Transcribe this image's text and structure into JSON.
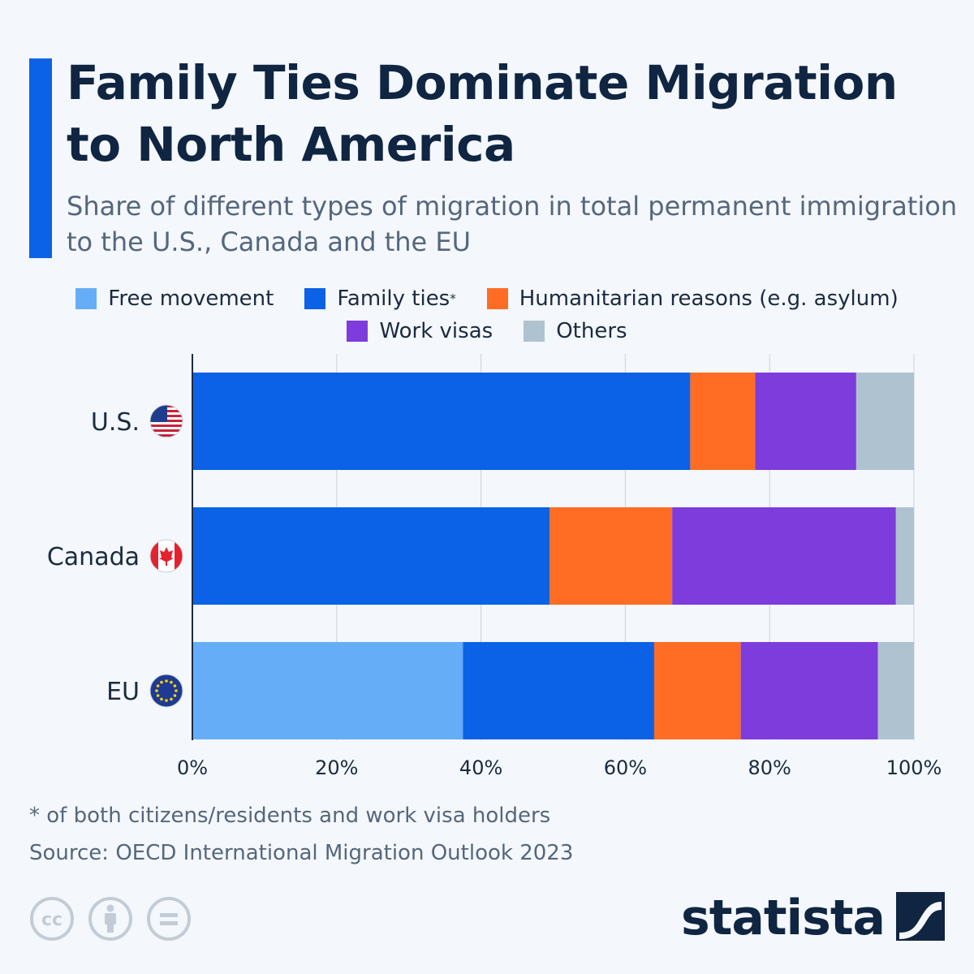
{
  "header": {
    "title": "Family Ties Dominate Migration to North America",
    "subtitle": "Share of different types of migration in total permanent immigration to the U.S., Canada and the EU"
  },
  "legend": {
    "items": [
      {
        "label": "Free movement",
        "color": "#66adf8"
      },
      {
        "label": "Family ties",
        "note": "*",
        "color": "#0c62e6"
      },
      {
        "label": "Humanitarian reasons (e.g. asylum)",
        "color": "#ff6d24"
      },
      {
        "label": "Work visas",
        "color": "#7d3cdb"
      },
      {
        "label": "Others",
        "color": "#aec3cf"
      }
    ]
  },
  "chart_data": {
    "type": "bar",
    "orientation": "horizontal",
    "stacked": true,
    "categories": [
      "U.S.",
      "Canada",
      "EU"
    ],
    "category_icons": [
      "us-flag-icon",
      "canada-flag-icon",
      "eu-flag-icon"
    ],
    "series": [
      {
        "name": "Free movement",
        "color": "#66adf8",
        "values": [
          0,
          0,
          37.5
        ]
      },
      {
        "name": "Family ties*",
        "color": "#0c62e6",
        "values": [
          69,
          49.5,
          26.5
        ]
      },
      {
        "name": "Humanitarian reasons (e.g. asylum)",
        "color": "#ff6d24",
        "values": [
          9,
          17,
          12
        ]
      },
      {
        "name": "Work visas",
        "color": "#7d3cdb",
        "values": [
          14,
          31,
          19
        ]
      },
      {
        "name": "Others",
        "color": "#aec3cf",
        "values": [
          8,
          2.5,
          5
        ]
      }
    ],
    "x_ticks": [
      "0%",
      "20%",
      "40%",
      "60%",
      "80%",
      "100%"
    ],
    "xlim": [
      0,
      100
    ],
    "grid": true,
    "legend_position": "top"
  },
  "footer": {
    "footnote": "* of both citizens/residents and work visa holders",
    "source": "Source: OECD International Migration Outlook 2023",
    "brand": "statista"
  }
}
